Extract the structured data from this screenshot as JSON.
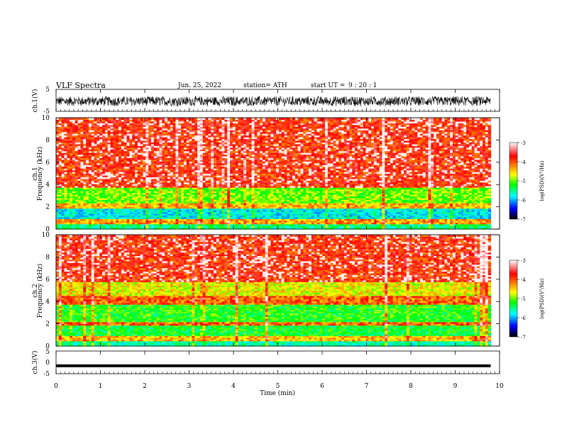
{
  "header": {
    "title": "VLF Spectra",
    "date": "Jun. 25, 2022",
    "station": "station= ATH",
    "start_prefix": "start UT =",
    "start_time": "9 : 20 : 1"
  },
  "colorbar": {
    "label": "log(PSD)(V²/Hz)",
    "ticks": [
      "-3",
      "-4",
      "-5",
      "-6",
      "-7"
    ],
    "colors": [
      "#ffffff",
      "#ff0000",
      "#ffff00",
      "#00ff00",
      "#00ffff",
      "#0000ff",
      "#000000"
    ]
  },
  "chart_data": [
    {
      "type": "line",
      "panel": "ch1-waveform",
      "ylabel": "ch.1(V)",
      "ylim": [
        -5,
        5
      ],
      "yticks": [
        "5",
        "-5"
      ],
      "xlim": [
        0,
        10
      ],
      "description_values": {
        "typical_amplitude_range": [
          -2.5,
          2.5
        ]
      }
    },
    {
      "type": "heatmap",
      "panel": "ch1-spectrogram",
      "ylabel": "ch.1 Frequency (kHz)",
      "ylim": [
        0,
        10
      ],
      "yticks": [
        "0",
        "2",
        "4",
        "6",
        "8",
        "10"
      ],
      "xlim": [
        0,
        10
      ],
      "data_end_min": 9.8,
      "color_scale": "log(PSD)(V²/Hz)",
      "clim": [
        -7,
        -3
      ],
      "bands": [
        {
          "f_from": 0.0,
          "f_to": 0.5,
          "level": -5.3
        },
        {
          "f_from": 0.5,
          "f_to": 1.0,
          "level": -4.2
        },
        {
          "f_from": 1.0,
          "f_to": 1.8,
          "level": -5.6
        },
        {
          "f_from": 1.8,
          "f_to": 2.3,
          "level": -4.3
        },
        {
          "f_from": 2.3,
          "f_to": 3.8,
          "level": -4.8
        },
        {
          "f_from": 3.8,
          "f_to": 10.0,
          "level": -3.8
        }
      ]
    },
    {
      "type": "heatmap",
      "panel": "ch2-spectrogram",
      "ylabel": "ch.2 Frequency (kHz)",
      "ylim": [
        0,
        10
      ],
      "yticks": [
        "0",
        "2",
        "4",
        "6",
        "8",
        "10"
      ],
      "xlim": [
        0,
        10
      ],
      "data_end_min": 9.8,
      "color_scale": "log(PSD)(V²/Hz)",
      "clim": [
        -7,
        -3
      ],
      "bands": [
        {
          "f_from": 0.0,
          "f_to": 0.4,
          "level": -5.4
        },
        {
          "f_from": 0.4,
          "f_to": 0.9,
          "level": -4.3
        },
        {
          "f_from": 0.9,
          "f_to": 1.9,
          "level": -5.1
        },
        {
          "f_from": 1.9,
          "f_to": 2.2,
          "level": -4.0
        },
        {
          "f_from": 2.2,
          "f_to": 3.7,
          "level": -5.0
        },
        {
          "f_from": 3.7,
          "f_to": 4.6,
          "level": -4.0
        },
        {
          "f_from": 4.6,
          "f_to": 5.8,
          "level": -4.5
        },
        {
          "f_from": 5.8,
          "f_to": 10.0,
          "level": -3.8
        }
      ]
    },
    {
      "type": "line",
      "panel": "ch3-waveform",
      "ylabel": "ch.3(V)",
      "ylim": [
        -5,
        5
      ],
      "yticks": [
        "5",
        "0",
        "-5"
      ],
      "xlim": [
        0,
        10
      ],
      "description_values": {
        "approx_level": -1.5
      }
    }
  ],
  "xaxis": {
    "label": "Time (min)",
    "ticks": [
      "0",
      "1",
      "2",
      "3",
      "4",
      "5",
      "6",
      "7",
      "8",
      "9",
      "10"
    ]
  }
}
